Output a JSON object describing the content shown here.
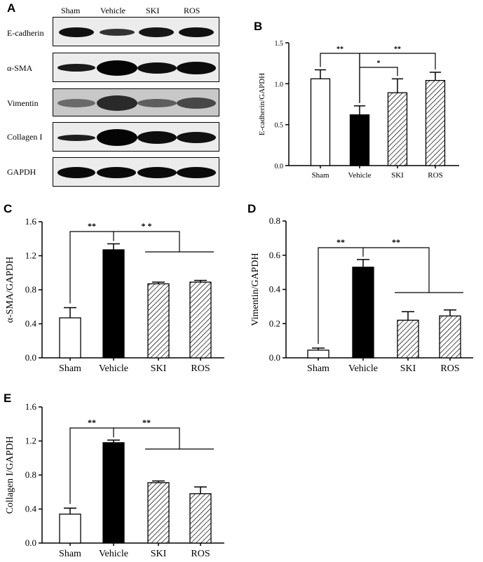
{
  "panels": {
    "a": "A",
    "b": "B",
    "c": "C",
    "d": "D",
    "e": "E"
  },
  "blot": {
    "lanes": [
      "Sham",
      "Vehicle",
      "SKI",
      "ROS"
    ],
    "proteins": [
      "E-cadherin",
      "α-SMA",
      "Vimentin",
      "Collagen I",
      "GAPDH"
    ]
  },
  "chart_data": [
    {
      "panel": "B",
      "type": "bar",
      "categories": [
        "Sham",
        "Vehicle",
        "SKI",
        "ROS"
      ],
      "values": [
        1.06,
        0.62,
        0.89,
        1.04
      ],
      "errors": [
        0.11,
        0.11,
        0.17,
        0.1
      ],
      "ylabel": "E-cadherin/GAPDH",
      "xlabel": "",
      "ylim": [
        0,
        1.5
      ],
      "yticks": [
        "0.0",
        "0.5",
        "1.0",
        "1.5"
      ],
      "fills": [
        "white",
        "black",
        "hatch",
        "hatch"
      ],
      "significance": [
        "**",
        "*",
        "**"
      ],
      "grid": false
    },
    {
      "panel": "C",
      "type": "bar",
      "categories": [
        "Sham",
        "Vehicle",
        "SKI",
        "ROS"
      ],
      "values": [
        0.47,
        1.27,
        0.87,
        0.89
      ],
      "errors": [
        0.12,
        0.07,
        0.02,
        0.02
      ],
      "ylabel": "α-SMA/GAPDH",
      "xlabel": "",
      "ylim": [
        0,
        1.6
      ],
      "yticks": [
        "0.0",
        "0.4",
        "0.8",
        "1.2",
        "1.6"
      ],
      "fills": [
        "white",
        "black",
        "hatch",
        "hatch"
      ],
      "significance": [
        "**",
        "* *"
      ],
      "grid": false
    },
    {
      "panel": "D",
      "type": "bar",
      "categories": [
        "Sham",
        "Vehicle",
        "SKI",
        "ROS"
      ],
      "values": [
        0.045,
        0.53,
        0.22,
        0.245
      ],
      "errors": [
        0.012,
        0.045,
        0.05,
        0.035
      ],
      "ylabel": "Vimentin/GAPDH",
      "xlabel": "",
      "ylim": [
        0,
        0.8
      ],
      "yticks": [
        "0.0",
        "0.2",
        "0.4",
        "0.6",
        "0.8"
      ],
      "fills": [
        "white",
        "black",
        "hatch",
        "hatch"
      ],
      "significance": [
        "**",
        "**"
      ],
      "grid": false
    },
    {
      "panel": "E",
      "type": "bar",
      "categories": [
        "Sham",
        "Vehicle",
        "SKI",
        "ROS"
      ],
      "values": [
        0.34,
        1.18,
        0.71,
        0.58
      ],
      "errors": [
        0.07,
        0.03,
        0.02,
        0.08
      ],
      "ylabel": "Collagen I/GAPDH",
      "xlabel": "",
      "ylim": [
        0,
        1.6
      ],
      "yticks": [
        "0.0",
        "0.4",
        "0.8",
        "1.2",
        "1.6"
      ],
      "fills": [
        "white",
        "black",
        "hatch",
        "hatch"
      ],
      "significance": [
        "**",
        "**"
      ],
      "grid": false
    }
  ]
}
